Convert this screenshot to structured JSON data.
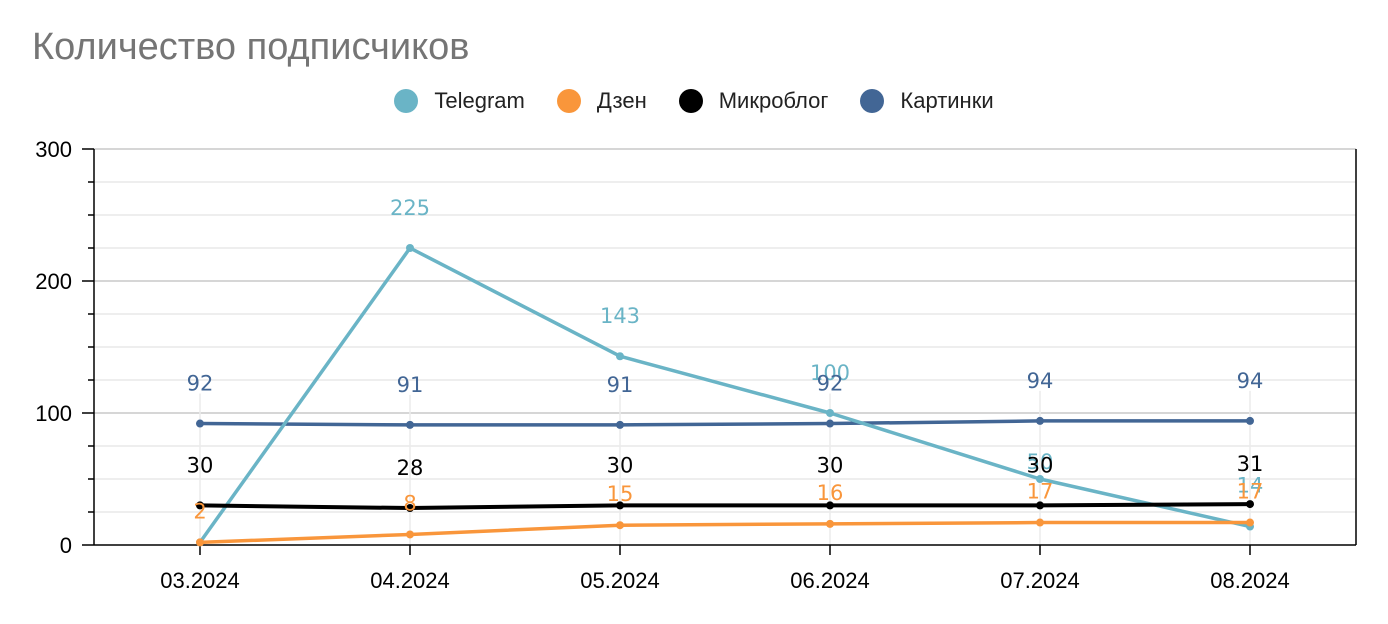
{
  "chart_data": {
    "type": "line",
    "title": "Количество подписчиков",
    "xlabel": "",
    "ylabel": "",
    "categories": [
      "03.2024",
      "04.2024",
      "05.2024",
      "06.2024",
      "07.2024",
      "08.2024"
    ],
    "ylim": [
      0,
      300
    ],
    "yticks": [
      0,
      100,
      200,
      300
    ],
    "grid": true,
    "legend_position": "top-center",
    "series": [
      {
        "name": "Telegram",
        "color": "#6ab4c6",
        "values": [
          2,
          225,
          143,
          100,
          50,
          14
        ],
        "labels": [
          "",
          "225",
          "143",
          "100",
          "50",
          "14"
        ]
      },
      {
        "name": "Дзен",
        "color": "#f9963b",
        "values": [
          2,
          8,
          15,
          16,
          17,
          17
        ],
        "labels": [
          "2",
          "8",
          "15",
          "16",
          "17",
          "17"
        ]
      },
      {
        "name": "Микроблог",
        "color": "#000000",
        "values": [
          30,
          28,
          30,
          30,
          30,
          31
        ],
        "labels": [
          "30",
          "28",
          "30",
          "30",
          "30",
          "31"
        ]
      },
      {
        "name": "Картинки",
        "color": "#426695",
        "values": [
          92,
          91,
          91,
          92,
          94,
          94
        ],
        "labels": [
          "92",
          "91",
          "91",
          "92",
          "94",
          "94"
        ]
      }
    ]
  }
}
